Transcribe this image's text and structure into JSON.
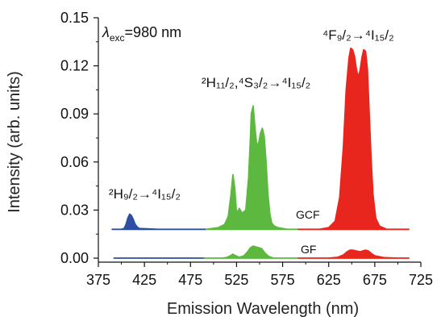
{
  "chart_data": {
    "type": "area",
    "title": "",
    "xlabel": "Emission Wavelength (nm)",
    "ylabel": "Intensity (arb. units)",
    "xlim": [
      375,
      725
    ],
    "ylim": [
      -0.0025,
      0.15
    ],
    "xticks": [
      "375",
      "425",
      "475",
      "525",
      "575",
      "625",
      "675",
      "725"
    ],
    "yticks": [
      "0.00",
      "0.03",
      "0.06",
      "0.09",
      "0.12",
      "0.15"
    ],
    "grid": false,
    "colors": {
      "blue": "#2d4ea3",
      "green": "#5cb83f",
      "red": "#e8261d"
    },
    "excitation_label": {
      "lambda": "λ",
      "sub": "exc",
      "text": "=980 nm"
    },
    "annotations": [
      {
        "id": "h92",
        "text": "²H₉/₂→⁴I₁₅/₂"
      },
      {
        "id": "h112",
        "text": "²H₁₁/₂,⁴S₃/₂→⁴I₁₅/₂"
      },
      {
        "id": "f92",
        "text": "⁴F₉/₂→⁴I₁₅/₂"
      }
    ],
    "series": [
      {
        "name": "GCF",
        "baseline": 0.018,
        "segments": [
          {
            "color": "blue",
            "x": [
              390,
              400,
              403,
              405,
              407,
              409,
              411,
              413,
              415,
              418,
              420,
              440,
              460,
              492
            ],
            "y": [
              0.018,
              0.018,
              0.0185,
              0.021,
              0.025,
              0.0275,
              0.0265,
              0.024,
              0.021,
              0.019,
              0.0185,
              0.018,
              0.018,
              0.018
            ]
          },
          {
            "color": "green",
            "x": [
              492,
              505,
              512,
              516,
              519,
              521,
              523,
              525,
              528,
              531,
              535,
              538,
              540,
              541,
              543,
              545,
              547,
              549,
              551,
              553,
              555,
              557,
              559,
              561,
              563,
              566,
              570,
              580,
              592
            ],
            "y": [
              0.018,
              0.019,
              0.021,
              0.026,
              0.04,
              0.052,
              0.044,
              0.028,
              0.031,
              0.028,
              0.03,
              0.05,
              0.075,
              0.09,
              0.095,
              0.081,
              0.07,
              0.072,
              0.078,
              0.081,
              0.076,
              0.06,
              0.04,
              0.028,
              0.022,
              0.02,
              0.019,
              0.018,
              0.018
            ]
          },
          {
            "color": "red",
            "x": [
              592,
              615,
              625,
              632,
              637,
              641,
              644,
              647,
              649,
              651,
              653,
              655,
              657,
              659,
              661,
              663,
              665,
              667,
              669,
              671,
              673,
              676,
              680,
              688,
              700,
              712
            ],
            "y": [
              0.018,
              0.018,
              0.019,
              0.023,
              0.038,
              0.07,
              0.105,
              0.125,
              0.131,
              0.13,
              0.126,
              0.118,
              0.113,
              0.117,
              0.125,
              0.13,
              0.129,
              0.118,
              0.09,
              0.062,
              0.04,
              0.025,
              0.02,
              0.018,
              0.018,
              0.018
            ]
          }
        ]
      },
      {
        "name": "GF",
        "baseline": 0.0,
        "segments": [
          {
            "color": "blue",
            "x": [
              392,
              420,
              450,
              490
            ],
            "y": [
              0.0,
              0.0,
              0.0,
              0.0
            ]
          },
          {
            "color": "green",
            "x": [
              490,
              510,
              515,
              518,
              521,
              524,
              528,
              533,
              537,
              540,
              543,
              546,
              549,
              552,
              556,
              560,
              565,
              575,
              592
            ],
            "y": [
              0.0,
              0.0,
              0.0005,
              0.0015,
              0.0025,
              0.0015,
              0.0005,
              0.0015,
              0.004,
              0.0065,
              0.0075,
              0.007,
              0.0065,
              0.006,
              0.003,
              0.001,
              0.0,
              0.0,
              0.0
            ]
          },
          {
            "color": "red",
            "x": [
              592,
              625,
              635,
              641,
              645,
              648,
              651,
              655,
              659,
              662,
              665,
              668,
              671,
              675,
              685,
              700,
              712
            ],
            "y": [
              0.0,
              0.0,
              0.0005,
              0.002,
              0.004,
              0.005,
              0.005,
              0.0045,
              0.004,
              0.0045,
              0.005,
              0.0045,
              0.003,
              0.0015,
              0.0003,
              0.0,
              0.0
            ]
          }
        ]
      }
    ]
  }
}
